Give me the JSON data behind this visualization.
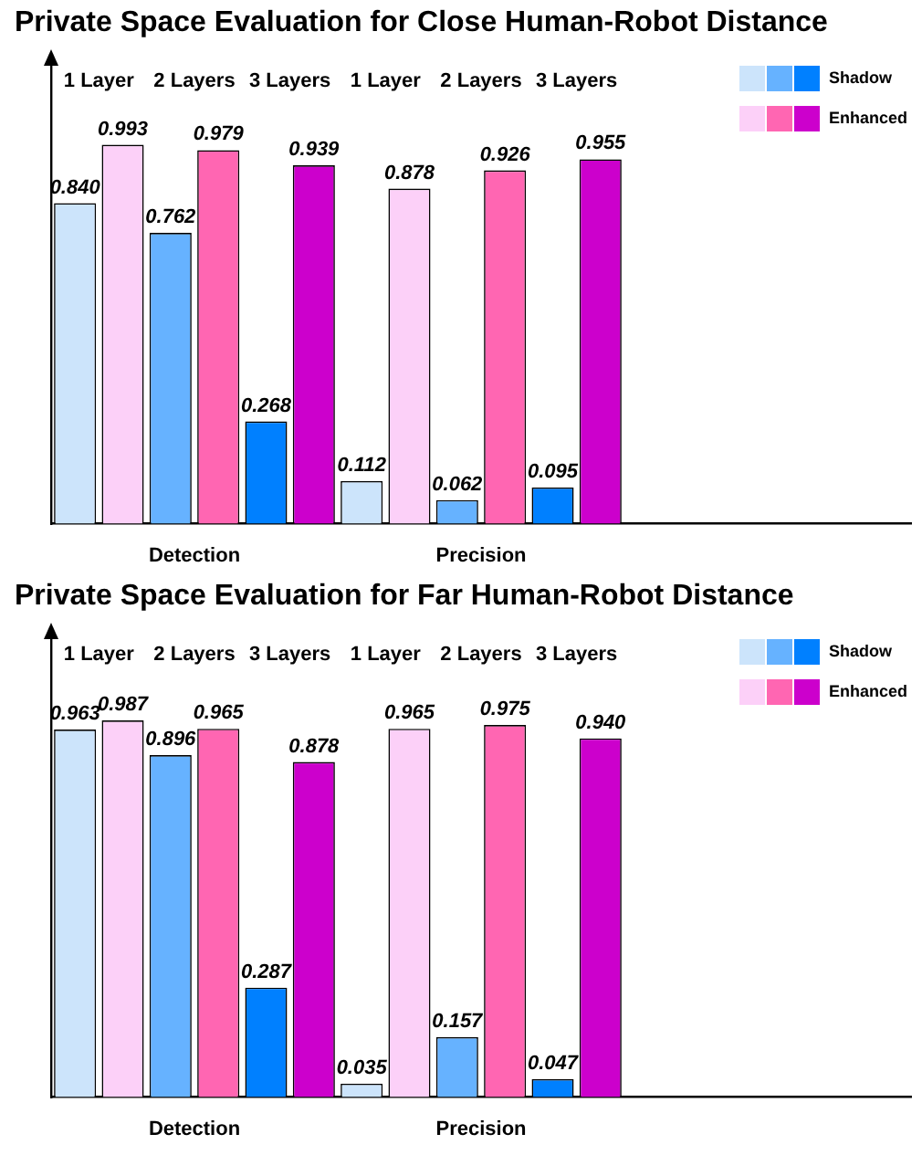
{
  "chart_data": [
    {
      "type": "bar",
      "title": "Private Space Evaluation for Close Human-Robot Distance",
      "categories": [
        "Detection",
        "Precision",
        null
      ],
      "legend": "top right",
      "annotations": [
        "1 Layer",
        "2 Layers",
        "3 Layers",
        "1 Layer",
        "2 Layers",
        "3 Layers"
      ],
      "series": [
        {
          "color": "#cce4fb",
          "values": [
            0.84,
            0.112,
            null
          ],
          "value_labels": [
            "0.840",
            "0.112",
            null
          ]
        },
        {
          "color": "#fcd0f8",
          "values": [
            0.993,
            0.878,
            null
          ],
          "value_labels": [
            "0.993",
            "0.878",
            null
          ]
        },
        {
          "color": "#66b2ff",
          "values": [
            0.762,
            0.062,
            null
          ],
          "value_labels": [
            "0.762",
            "0.062",
            null
          ]
        },
        {
          "color": "#ff66b2",
          "values": [
            0.979,
            0.926,
            null
          ],
          "value_labels": [
            "0.979",
            "0.926",
            null
          ]
        },
        {
          "name": "Shadow",
          "color": "#0080ff",
          "values": [
            0.268,
            0.095,
            null
          ],
          "value_labels": [
            "0.268",
            "0.095",
            null
          ]
        },
        {
          "name": "Enhanced",
          "color": "#cc00cc",
          "values": [
            0.939,
            0.955,
            null
          ],
          "value_labels": [
            "0.939",
            "0.955",
            null
          ]
        }
      ]
    },
    {
      "type": "bar",
      "title": "Private Space Evaluation for Far Human-Robot Distance",
      "categories": [
        "Detection",
        "Precision",
        null
      ],
      "legend": "top right",
      "annotations": [
        "1 Layer",
        "2 Layers",
        "3 Layers",
        "1 Layer",
        "2 Layers",
        "3 Layers"
      ],
      "series": [
        {
          "color": "#cce4fb",
          "values": [
            0.963,
            0.035,
            null
          ],
          "value_labels": [
            "0.963",
            "0.035",
            null
          ]
        },
        {
          "color": "#fcd0f8",
          "values": [
            0.987,
            0.965,
            null
          ],
          "value_labels": [
            "0.987",
            "0.965",
            null
          ]
        },
        {
          "color": "#66b2ff",
          "values": [
            0.896,
            0.157,
            null
          ],
          "value_labels": [
            "0.896",
            "0.157",
            null
          ]
        },
        {
          "color": "#ff66b2",
          "values": [
            0.965,
            0.975,
            null
          ],
          "value_labels": [
            "0.965",
            "0.975",
            null
          ]
        },
        {
          "name": "Shadow",
          "color": "#0080ff",
          "values": [
            0.287,
            0.047,
            null
          ],
          "value_labels": [
            "0.287",
            "0.047",
            null
          ]
        },
        {
          "name": "Enhanced",
          "color": "#cc00cc",
          "values": [
            0.878,
            0.94,
            null
          ],
          "value_labels": [
            "0.878",
            "0.940",
            null
          ]
        }
      ]
    }
  ]
}
